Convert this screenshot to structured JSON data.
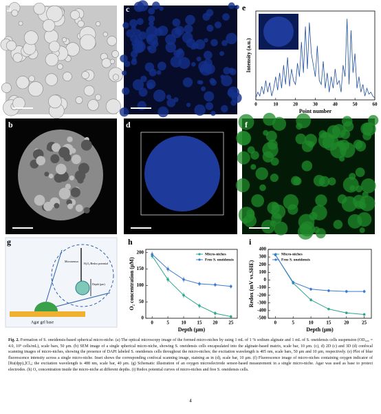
{
  "figure": {
    "panels": [
      "a",
      "b",
      "c",
      "d",
      "e",
      "f",
      "g",
      "h",
      "i"
    ],
    "diagram": {
      "sensor": "Microsensor",
      "measure": "H₂O₂/Redox potential",
      "depth": "Depth (μm)",
      "base": "Agar gel base"
    },
    "caption_label": "Fig. 2.",
    "caption": "Formation of S. oneidensis-based spherical micro-niche. (a) The optical microscopy image of the formed micro-niches by using 1 mL of 1 % sodium alginate and 1 mL of S. oneidensis cells suspension (OD₆₀₀ = 4.0, 10⁹ cells/mL), scale bars, 50 μm. (b) SEM image of a single spherical micro-niche, showing S. oneidensis cells encapsulated into the alginate-based matrix, scale bar, 10 μm. (c), d) 2D (c) and 3D (d) confocal scanning images of micro-niches, showing the presence of DAPI labeled S. oneidensis cells throughout the micro-niches; the excitation wavelength is 405 nm, scale bars, 50 μm and 10 μm, respectively. (e) Plot of blue fluorescence intensity across a single micro-niche. Inset shows the corresponding confocal scanning image, staining as in (d), scale bar, 10 μm. (f) Fluorescence image of micro-niches containing oxygen indicator of [Ru(dpp)₃]Cl₂; the excitation wavelength is 488 nm, scale bar, 40 μm. (g) Schematic illustration of an oxygen microelectrode sensor-based measurement in a single micro-niche. Agar was used as base to protect electrodes. (h) O₂ concentration inside the micro-niche at different depths. (i) Redox potential curves of micro-niches and free S. oneidensis cells.",
    "page_number": "4"
  },
  "chart_data": [
    {
      "type": "line",
      "x_label": "Point number",
      "y_label": "Intensity (a.u.)",
      "x": [
        0,
        1,
        2,
        3,
        4,
        5,
        6,
        7,
        8,
        9,
        10,
        11,
        12,
        13,
        14,
        15,
        16,
        17,
        18,
        19,
        20,
        21,
        22,
        23,
        24,
        25,
        26,
        27,
        28,
        29,
        30,
        31,
        32,
        33,
        34,
        35,
        36,
        37,
        38,
        39,
        40,
        41,
        42,
        43,
        44,
        45,
        46,
        47,
        48,
        49,
        50,
        51,
        52,
        53,
        54,
        55,
        56,
        57,
        58,
        59,
        60
      ],
      "values": [
        5,
        20,
        10,
        35,
        15,
        50,
        20,
        45,
        10,
        30,
        60,
        25,
        70,
        30,
        90,
        40,
        110,
        35,
        80,
        50,
        40,
        95,
        60,
        150,
        70,
        190,
        80,
        200,
        120,
        90,
        60,
        140,
        50,
        40,
        100,
        30,
        70,
        20,
        60,
        30,
        80,
        40,
        50,
        20,
        90,
        60,
        210,
        40,
        180,
        70,
        120,
        30,
        60,
        20,
        40,
        10,
        30,
        15,
        20,
        10,
        5
      ],
      "color": "#1f4fa0",
      "xlim": [
        0,
        60
      ],
      "xticks": [
        0,
        10,
        20,
        30,
        40,
        50,
        60
      ],
      "ylim": [
        0,
        230
      ]
    },
    {
      "type": "line",
      "x_label": "Depth (μm)",
      "y_label": "O₂ concentration (μM)",
      "x": [
        0,
        5,
        10,
        15,
        20,
        25
      ],
      "xlim": [
        -2,
        27
      ],
      "xticks": [
        0,
        5,
        10,
        15,
        20,
        25
      ],
      "ylim": [
        0,
        210
      ],
      "yticks": [
        0,
        50,
        100,
        150,
        200
      ],
      "legend_position": "upper right",
      "series": [
        {
          "name": "Micro-niches",
          "color": "#2aa88f",
          "values": [
            190,
            118,
            70,
            38,
            15,
            5
          ],
          "errors": [
            8,
            8,
            8,
            7,
            6,
            5
          ]
        },
        {
          "name": "Free S. oneidensis",
          "color": "#3b7bd0",
          "values": [
            195,
            150,
            118,
            105,
            102,
            97
          ],
          "errors": [
            8,
            8,
            8,
            6,
            6,
            6
          ]
        }
      ]
    },
    {
      "type": "line",
      "x_label": "Depth (μm)",
      "y_label": "Redox (mV vs.SHE)",
      "x": [
        0,
        5,
        10,
        15,
        20,
        25
      ],
      "xlim": [
        -2,
        27
      ],
      "xticks": [
        0,
        5,
        10,
        15,
        20,
        25
      ],
      "ylim": [
        -500,
        400
      ],
      "yticks": [
        -500,
        -400,
        -300,
        -200,
        -100,
        0,
        100,
        200,
        300,
        400
      ],
      "legend_position": "upper left",
      "series": [
        {
          "name": "Micro-niches",
          "color": "#2aa88f",
          "values": [
            330,
            -40,
            -260,
            -380,
            -430,
            -450
          ],
          "errors": [
            20,
            20,
            20,
            15,
            15,
            15
          ]
        },
        {
          "name": "Free S. oneidensis",
          "color": "#3b7bd0",
          "values": [
            330,
            -30,
            -120,
            -140,
            -150,
            -150
          ],
          "errors": [
            20,
            20,
            20,
            20,
            20,
            20
          ]
        }
      ]
    }
  ]
}
